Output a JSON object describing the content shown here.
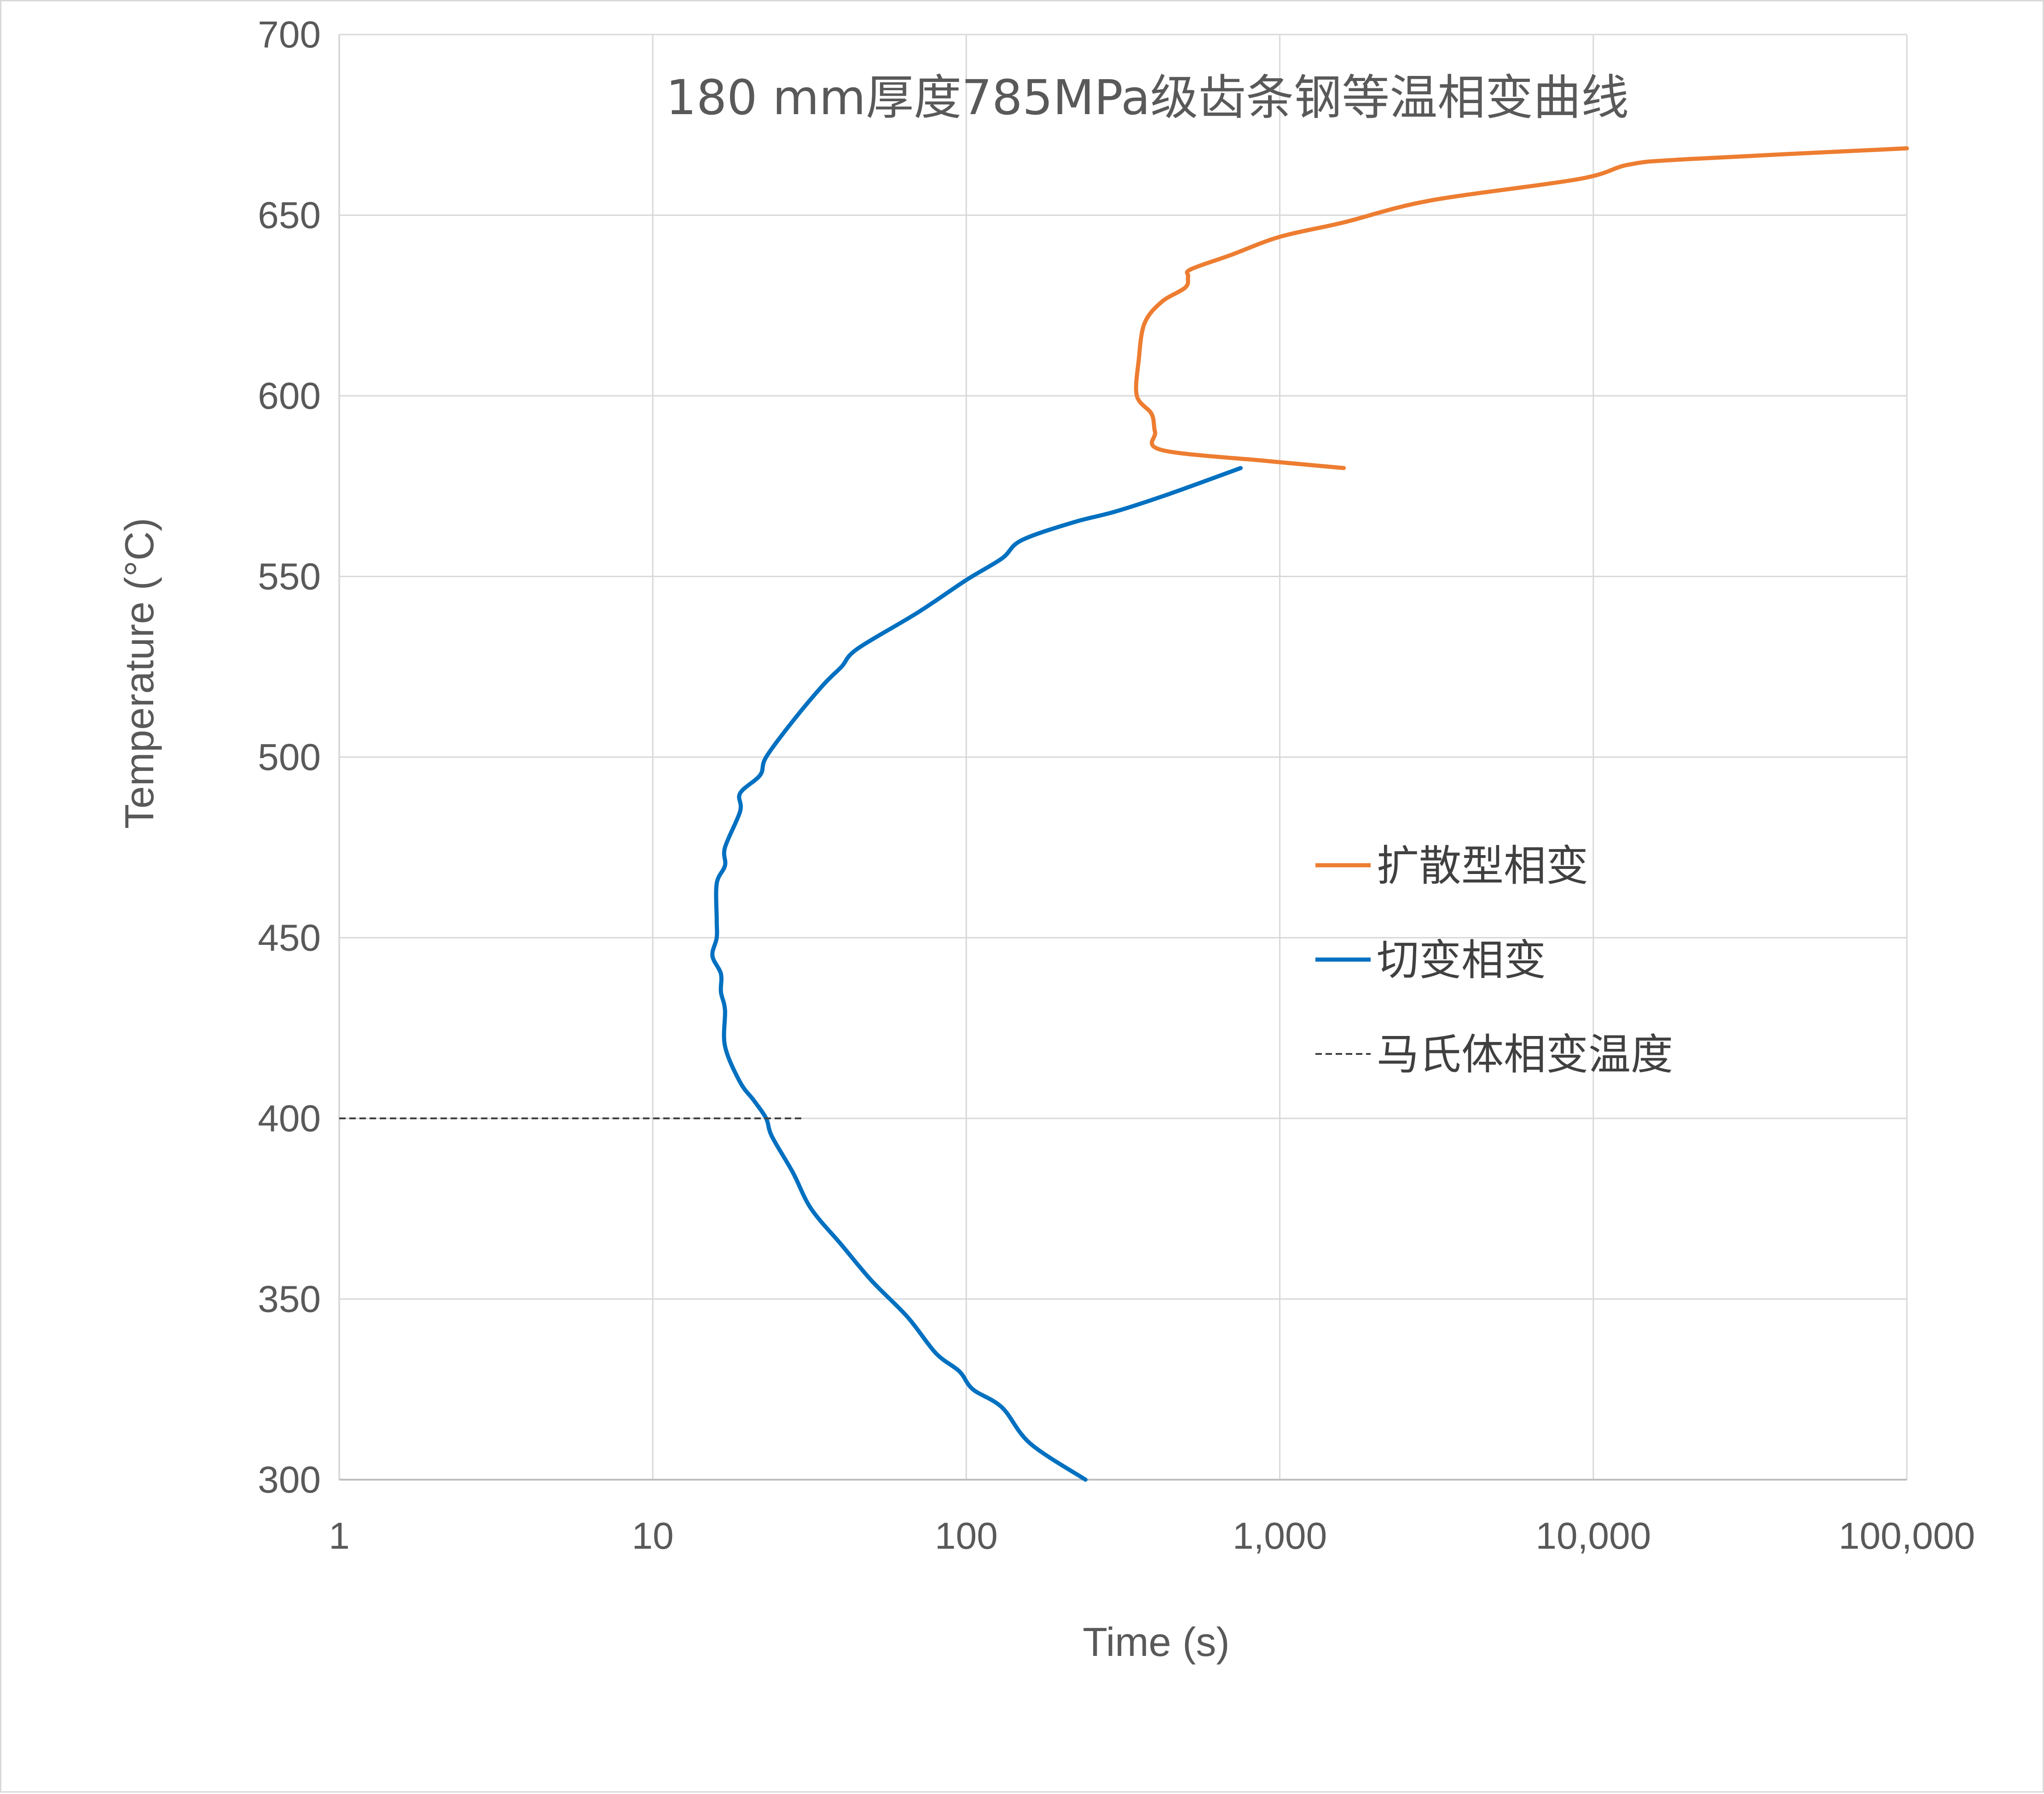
{
  "chart_data": {
    "type": "line",
    "title": "180 mm厚度785MPa级齿条钢等温相变曲线",
    "xlabel": "Time (s)",
    "ylabel": "Temperature (°C)",
    "x_scale": "log",
    "xlim": [
      1,
      100000
    ],
    "ylim": [
      300,
      700
    ],
    "x_ticks": [
      "1",
      "10",
      "100",
      "1,000",
      "10,000",
      "100,000"
    ],
    "y_ticks": [
      "300",
      "350",
      "400",
      "450",
      "500",
      "550",
      "600",
      "650",
      "700"
    ],
    "grid": true,
    "legend_position": "right",
    "series": [
      {
        "name": "扩散型相变",
        "color": "#ED7D31",
        "dash": "solid",
        "points": [
          [
            1600,
            580
          ],
          [
            900,
            582
          ],
          [
            420,
            585
          ],
          [
            400,
            590
          ],
          [
            390,
            595
          ],
          [
            350,
            600
          ],
          [
            355,
            610
          ],
          [
            370,
            620
          ],
          [
            420,
            626
          ],
          [
            500,
            630
          ],
          [
            510,
            633
          ],
          [
            520,
            635
          ],
          [
            700,
            639
          ],
          [
            1000,
            644
          ],
          [
            1600,
            648
          ],
          [
            3000,
            654
          ],
          [
            9000,
            660
          ],
          [
            13000,
            664
          ],
          [
            20000,
            665.5
          ],
          [
            100000,
            668.5
          ]
        ]
      },
      {
        "name": "切变相变",
        "color": "#0070C0",
        "dash": "solid",
        "points": [
          [
            750,
            580
          ],
          [
            450,
            573
          ],
          [
            300,
            568
          ],
          [
            220,
            565
          ],
          [
            150,
            560
          ],
          [
            130,
            555
          ],
          [
            100,
            549
          ],
          [
            70,
            540
          ],
          [
            45,
            530
          ],
          [
            40,
            525
          ],
          [
            35,
            520
          ],
          [
            28,
            510
          ],
          [
            23,
            500
          ],
          [
            22,
            495
          ],
          [
            19,
            490
          ],
          [
            19,
            485
          ],
          [
            17,
            475
          ],
          [
            17,
            470
          ],
          [
            16,
            465
          ],
          [
            16,
            455
          ],
          [
            16,
            450
          ],
          [
            15.5,
            445
          ],
          [
            16.5,
            440
          ],
          [
            16.5,
            435
          ],
          [
            17,
            430
          ],
          [
            17,
            420
          ],
          [
            19,
            410
          ],
          [
            21,
            405
          ],
          [
            23,
            400
          ],
          [
            24,
            395
          ],
          [
            28,
            385
          ],
          [
            32,
            375
          ],
          [
            40,
            365
          ],
          [
            50,
            355
          ],
          [
            65,
            345
          ],
          [
            80,
            335
          ],
          [
            95,
            330
          ],
          [
            105,
            325
          ],
          [
            130,
            320
          ],
          [
            160,
            310
          ],
          [
            240,
            300
          ]
        ]
      },
      {
        "name": "马氏体相变温度",
        "color": "#404040",
        "dash": "dashed",
        "points": [
          [
            1,
            400
          ],
          [
            30,
            400
          ]
        ]
      }
    ]
  }
}
